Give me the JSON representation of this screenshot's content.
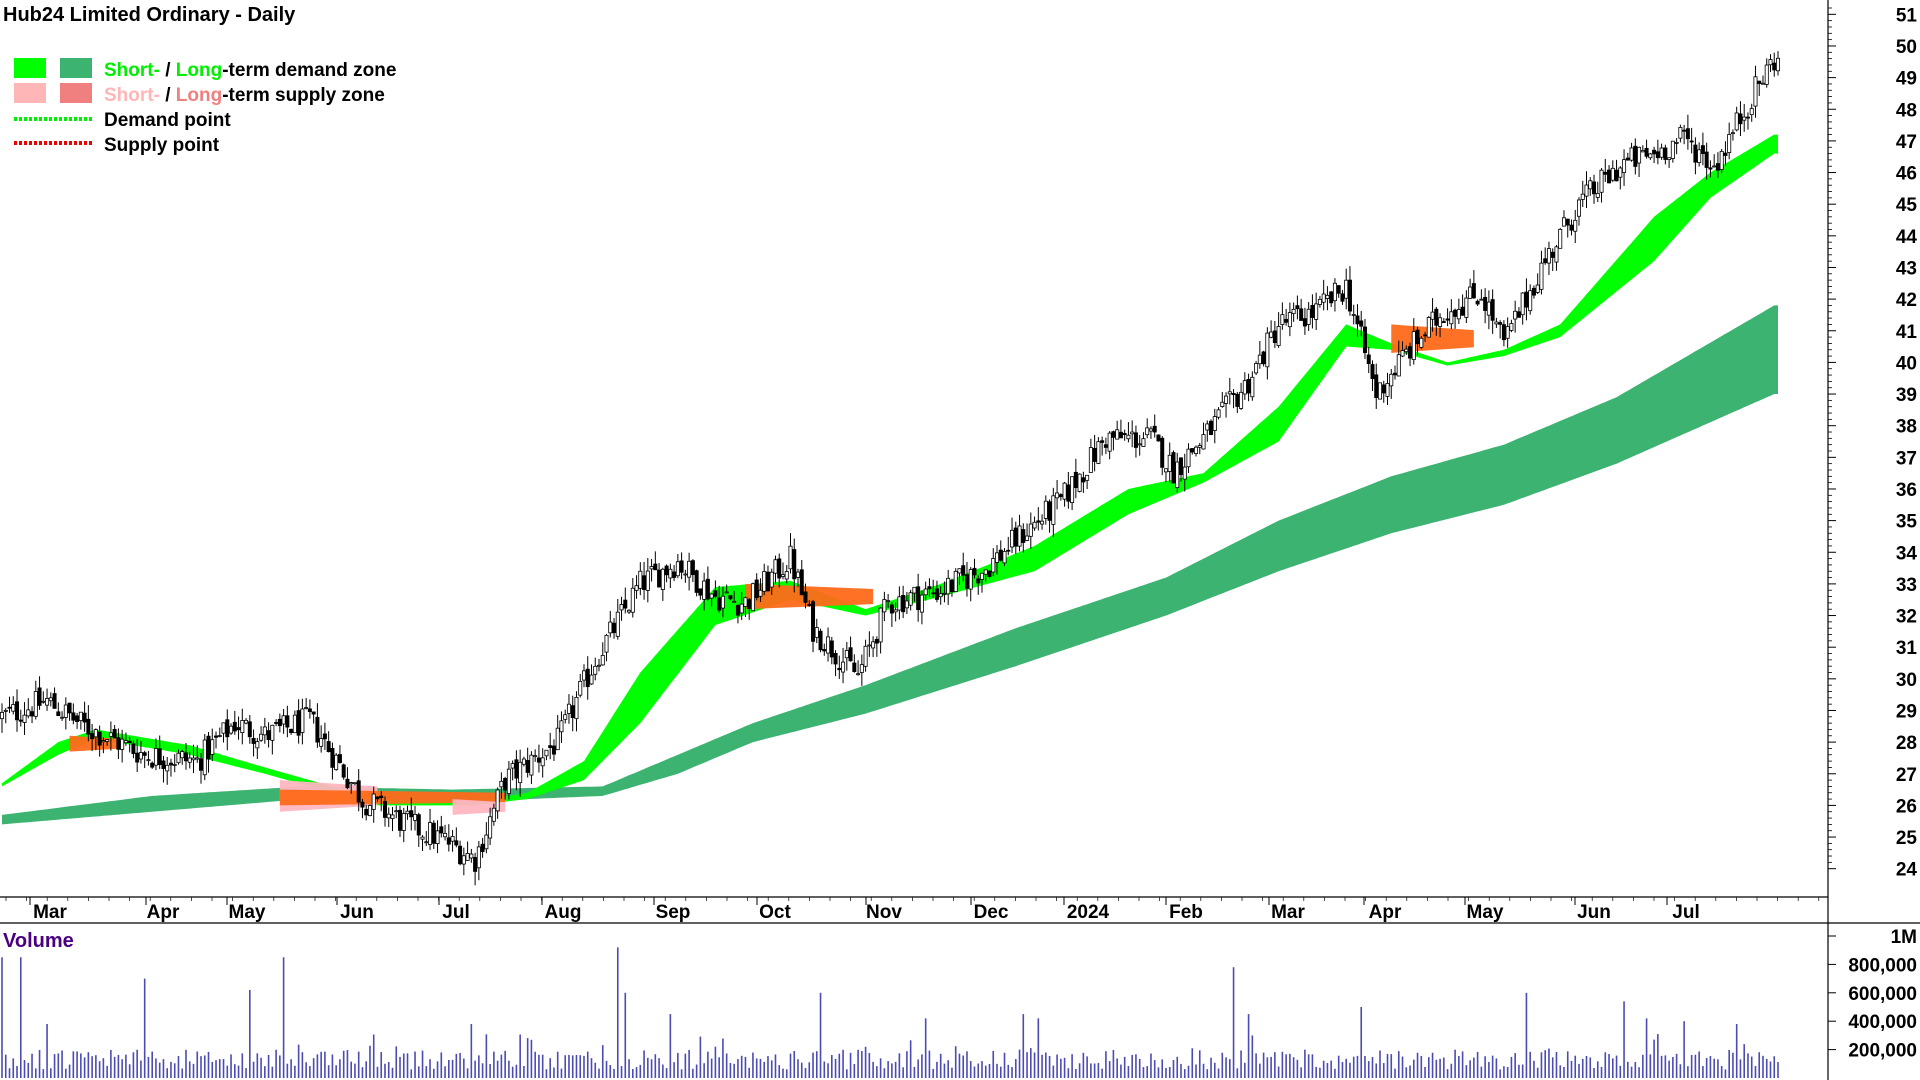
{
  "title": "Hub24 Limited Ordinary - Daily",
  "legend": {
    "demand_zone": {
      "short": "Short-",
      "sep": " / ",
      "long": "Long",
      "rest": "-term demand zone",
      "short_color": "#00ff00",
      "long_color": "#3cb371"
    },
    "supply_zone": {
      "short": "Short-",
      "sep": " / ",
      "long": "Long",
      "rest": "-term supply zone",
      "short_color": "#ffb6b6",
      "long_color": "#f08080"
    },
    "demand_point": "Demand point",
    "supply_point": "Supply point"
  },
  "volume_label": "Volume",
  "colors": {
    "short_demand": "#00ff00",
    "long_demand": "#3cb371",
    "short_supply_orange": "#ff6a1a",
    "short_supply_pink": "#ffb6c1",
    "volume_bar": "#4b4bb4",
    "volume_label": "#4b0082"
  },
  "chart_data": [
    {
      "type": "candlestick",
      "title": "Hub24 Limited Ordinary - Daily",
      "x_labels": [
        "Mar",
        "Apr",
        "May",
        "Jun",
        "Jul",
        "Aug",
        "Sep",
        "Oct",
        "Nov",
        "Dec",
        "2024",
        "Feb",
        "Mar",
        "Apr",
        "May",
        "Jun",
        "Jul"
      ],
      "y_ticks": [
        24,
        25,
        26,
        27,
        28,
        29,
        30,
        31,
        32,
        33,
        34,
        35,
        36,
        37,
        38,
        39,
        40,
        41,
        42,
        43,
        44,
        45,
        46,
        47,
        48,
        49,
        50,
        51
      ],
      "ylim": [
        23.2,
        51.2
      ],
      "y_axis": "right",
      "price_path": [
        [
          0,
          28.8
        ],
        [
          12,
          29.3
        ],
        [
          22,
          28.5
        ],
        [
          38,
          27.6
        ],
        [
          52,
          27.4
        ],
        [
          62,
          28.6
        ],
        [
          70,
          28.2
        ],
        [
          82,
          28.7
        ],
        [
          96,
          26.2
        ],
        [
          108,
          25.4
        ],
        [
          118,
          24.9
        ],
        [
          126,
          24.3
        ],
        [
          134,
          26.8
        ],
        [
          148,
          28.0
        ],
        [
          158,
          30.6
        ],
        [
          170,
          33.0
        ],
        [
          180,
          33.7
        ],
        [
          190,
          32.6
        ],
        [
          198,
          32.4
        ],
        [
          210,
          33.8
        ],
        [
          216,
          31.6
        ],
        [
          228,
          30.1
        ],
        [
          236,
          32.4
        ],
        [
          250,
          32.8
        ],
        [
          262,
          33.5
        ],
        [
          272,
          34.6
        ],
        [
          282,
          35.6
        ],
        [
          294,
          37.6
        ],
        [
          306,
          37.6
        ],
        [
          312,
          36.6
        ],
        [
          320,
          37.6
        ],
        [
          332,
          39.4
        ],
        [
          340,
          41.2
        ],
        [
          350,
          41.6
        ],
        [
          358,
          42.4
        ],
        [
          366,
          39.0
        ],
        [
          374,
          40.3
        ],
        [
          384,
          41.6
        ],
        [
          394,
          42.2
        ],
        [
          400,
          40.6
        ],
        [
          410,
          43.0
        ],
        [
          420,
          45.0
        ],
        [
          432,
          46.3
        ],
        [
          440,
          46.6
        ],
        [
          448,
          47.1
        ],
        [
          456,
          46.2
        ],
        [
          466,
          48.4
        ],
        [
          472,
          49.6
        ]
      ],
      "demand_short_upper": [
        [
          0,
          26.7
        ],
        [
          15,
          28.0
        ],
        [
          25,
          28.4
        ],
        [
          50,
          27.9
        ],
        [
          70,
          27.2
        ],
        [
          100,
          26.2
        ],
        [
          125,
          26.1
        ],
        [
          140,
          26.4
        ],
        [
          155,
          27.4
        ],
        [
          170,
          30.2
        ],
        [
          190,
          32.9
        ],
        [
          210,
          33.1
        ],
        [
          230,
          32.2
        ],
        [
          250,
          33.0
        ],
        [
          275,
          34.2
        ],
        [
          300,
          36.0
        ],
        [
          320,
          36.5
        ],
        [
          340,
          38.6
        ],
        [
          358,
          41.2
        ],
        [
          370,
          40.6
        ],
        [
          385,
          40.0
        ],
        [
          400,
          40.4
        ],
        [
          415,
          41.2
        ],
        [
          440,
          44.6
        ],
        [
          455,
          46.0
        ],
        [
          472,
          47.2
        ]
      ],
      "demand_short_lower": [
        [
          0,
          26.6
        ],
        [
          15,
          27.6
        ],
        [
          25,
          28.1
        ],
        [
          50,
          27.6
        ],
        [
          70,
          27.0
        ],
        [
          100,
          26.0
        ],
        [
          125,
          26.0
        ],
        [
          140,
          26.2
        ],
        [
          155,
          26.8
        ],
        [
          170,
          28.6
        ],
        [
          190,
          31.7
        ],
        [
          210,
          32.5
        ],
        [
          230,
          32.0
        ],
        [
          250,
          32.6
        ],
        [
          275,
          33.4
        ],
        [
          300,
          35.2
        ],
        [
          320,
          36.2
        ],
        [
          340,
          37.5
        ],
        [
          358,
          40.5
        ],
        [
          370,
          40.4
        ],
        [
          385,
          39.9
        ],
        [
          400,
          40.2
        ],
        [
          415,
          40.8
        ],
        [
          440,
          43.2
        ],
        [
          455,
          45.2
        ],
        [
          472,
          46.6
        ]
      ],
      "demand_long_upper": [
        [
          0,
          25.7
        ],
        [
          40,
          26.3
        ],
        [
          80,
          26.6
        ],
        [
          120,
          26.5
        ],
        [
          160,
          26.6
        ],
        [
          180,
          27.6
        ],
        [
          200,
          28.6
        ],
        [
          230,
          29.8
        ],
        [
          270,
          31.6
        ],
        [
          310,
          33.2
        ],
        [
          340,
          35.0
        ],
        [
          370,
          36.4
        ],
        [
          400,
          37.4
        ],
        [
          430,
          38.9
        ],
        [
          472,
          41.8
        ]
      ],
      "demand_long_lower": [
        [
          0,
          25.4
        ],
        [
          40,
          25.8
        ],
        [
          80,
          26.2
        ],
        [
          120,
          26.1
        ],
        [
          160,
          26.3
        ],
        [
          180,
          27.0
        ],
        [
          200,
          28.0
        ],
        [
          230,
          28.9
        ],
        [
          270,
          30.4
        ],
        [
          310,
          32.0
        ],
        [
          340,
          33.4
        ],
        [
          370,
          34.6
        ],
        [
          400,
          35.5
        ],
        [
          430,
          36.8
        ],
        [
          472,
          39.0
        ]
      ],
      "supply_zones": [
        {
          "color": "orange",
          "x_from": 18,
          "x_to": 32,
          "upper": 28.2,
          "lower": 27.7
        },
        {
          "color": "pink",
          "x_from": 74,
          "x_to": 100,
          "upper": 26.8,
          "lower": 25.8
        },
        {
          "color": "orange",
          "x_from": 74,
          "x_to": 134,
          "upper": 26.5,
          "lower": 26.0
        },
        {
          "color": "pink",
          "x_from": 120,
          "x_to": 134,
          "upper": 26.2,
          "lower": 25.7
        },
        {
          "color": "orange",
          "x_from": 198,
          "x_to": 232,
          "upper": 33.0,
          "lower": 32.2
        },
        {
          "color": "orange",
          "x_from": 370,
          "x_to": 392,
          "upper": 41.2,
          "lower": 40.3
        }
      ]
    },
    {
      "type": "bar",
      "name": "Volume",
      "y_ticks": [
        "200,000",
        "400,000",
        "600,000",
        "800,000",
        "1M"
      ],
      "y_tick_values": [
        200000,
        400000,
        600000,
        800000,
        1000000
      ],
      "ylim": [
        0,
        1000000
      ],
      "volume_spikes": [
        [
          0,
          850000
        ],
        [
          5,
          850000
        ],
        [
          12,
          380000
        ],
        [
          38,
          700000
        ],
        [
          66,
          620000
        ],
        [
          75,
          850000
        ],
        [
          125,
          380000
        ],
        [
          164,
          920000
        ],
        [
          166,
          600000
        ],
        [
          178,
          450000
        ],
        [
          218,
          600000
        ],
        [
          246,
          420000
        ],
        [
          272,
          450000
        ],
        [
          276,
          420000
        ],
        [
          328,
          780000
        ],
        [
          332,
          450000
        ],
        [
          362,
          500000
        ],
        [
          406,
          600000
        ],
        [
          432,
          540000
        ],
        [
          438,
          420000
        ],
        [
          448,
          400000
        ],
        [
          462,
          380000
        ]
      ]
    }
  ]
}
